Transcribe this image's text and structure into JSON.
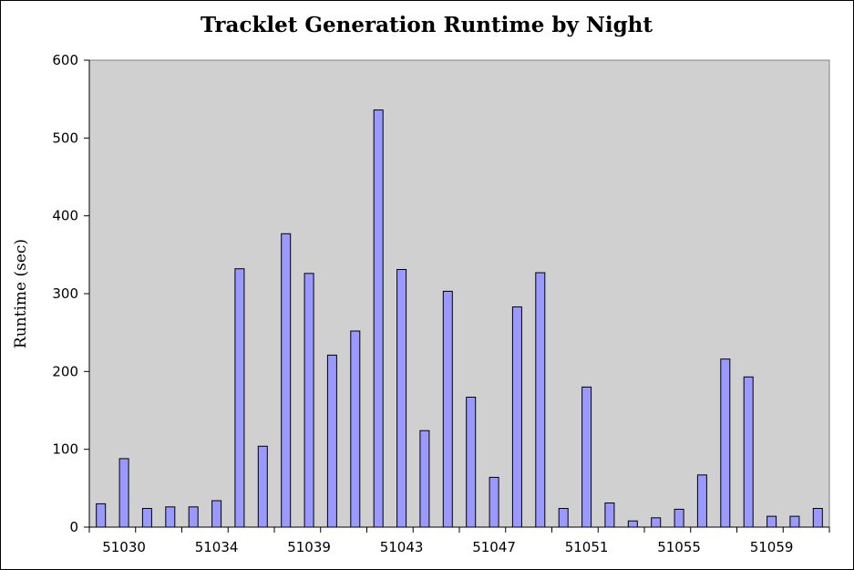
{
  "chart_data": {
    "type": "bar",
    "title": "Tracklet Generation Runtime by Night",
    "xlabel": "",
    "ylabel": "Runtime (sec)",
    "ylim": [
      0,
      600
    ],
    "yticks": [
      0,
      100,
      200,
      300,
      400,
      500,
      600
    ],
    "grid": false,
    "legend": "none",
    "bar_color": "#9999FF",
    "plot_background": "#D0D0D0",
    "x_tick_labels": [
      {
        "index": 1,
        "label": "51030"
      },
      {
        "index": 5,
        "label": "51034"
      },
      {
        "index": 9,
        "label": "51039"
      },
      {
        "index": 13,
        "label": "51043"
      },
      {
        "index": 17,
        "label": "51047"
      },
      {
        "index": 21,
        "label": "51051"
      },
      {
        "index": 25,
        "label": "51055"
      },
      {
        "index": 29,
        "label": "51059"
      }
    ],
    "values": [
      30,
      88,
      24,
      26,
      26,
      34,
      332,
      104,
      377,
      326,
      221,
      252,
      536,
      331,
      124,
      303,
      167,
      64,
      283,
      327,
      24,
      180,
      31,
      8,
      12,
      23,
      67,
      216,
      193,
      14,
      14,
      24
    ]
  }
}
